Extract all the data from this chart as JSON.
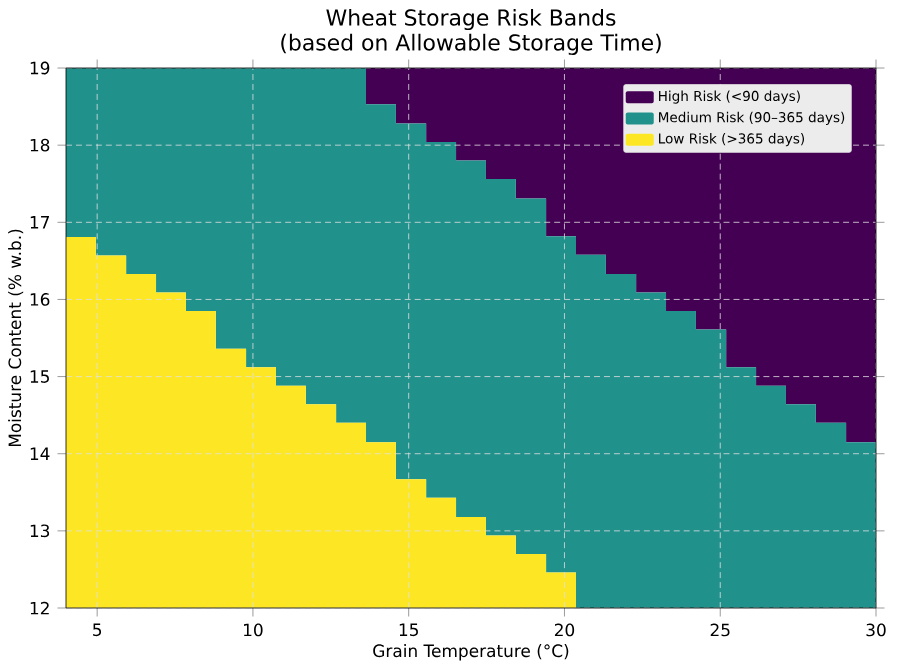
{
  "chart_data": {
    "type": "area",
    "title": "Wheat Storage Risk Bands",
    "subtitle": "(based on Allowable Storage Time)",
    "xlabel": "Grain Temperature (°C)",
    "ylabel": "Moisture Content (% w.b.)",
    "x": [
      4,
      4.96,
      5.93,
      6.89,
      7.85,
      8.81,
      9.78,
      10.74,
      11.7,
      12.67,
      13.63,
      14.59,
      15.56,
      16.52,
      17.48,
      18.44,
      19.41,
      20.37,
      21.33,
      22.3,
      23.26,
      24.22,
      25.19,
      26.15,
      27.11,
      28.07,
      29.04,
      30
    ],
    "series": [
      {
        "name": "High Risk (<90 days)",
        "color": "#440154",
        "values": [
          19,
          19,
          19,
          19,
          19,
          19,
          19,
          19,
          19,
          19,
          19,
          19,
          19,
          19,
          19,
          19,
          19,
          19,
          19,
          19,
          19,
          19,
          19,
          19,
          19,
          19,
          19,
          19
        ]
      },
      {
        "name": "Medium Risk (90–365 days)",
        "color": "#21918c",
        "values": [
          19,
          19,
          19,
          19,
          19,
          19,
          19,
          19,
          19,
          19,
          18.53,
          18.28,
          18.04,
          17.8,
          17.56,
          17.31,
          16.82,
          16.58,
          16.33,
          16.09,
          15.85,
          15.61,
          15.12,
          14.88,
          14.64,
          14.4,
          14.15,
          14.15
        ]
      },
      {
        "name": "Low Risk (>365 days)",
        "color": "#fde725",
        "values": [
          16.81,
          16.57,
          16.33,
          16.09,
          15.85,
          15.36,
          15.12,
          14.88,
          14.64,
          14.4,
          14.15,
          13.67,
          13.43,
          13.18,
          12.94,
          12.7,
          12.46,
          12,
          12,
          12,
          12,
          12,
          12,
          12,
          12,
          12,
          12,
          12
        ]
      }
    ],
    "xlim": [
      4,
      30
    ],
    "ylim": [
      12,
      19
    ],
    "xticks": [
      5,
      10,
      15,
      20,
      25,
      30
    ],
    "yticks": [
      12,
      13,
      14,
      15,
      16,
      17,
      18,
      19
    ],
    "grid": true,
    "legend": "top right"
  }
}
